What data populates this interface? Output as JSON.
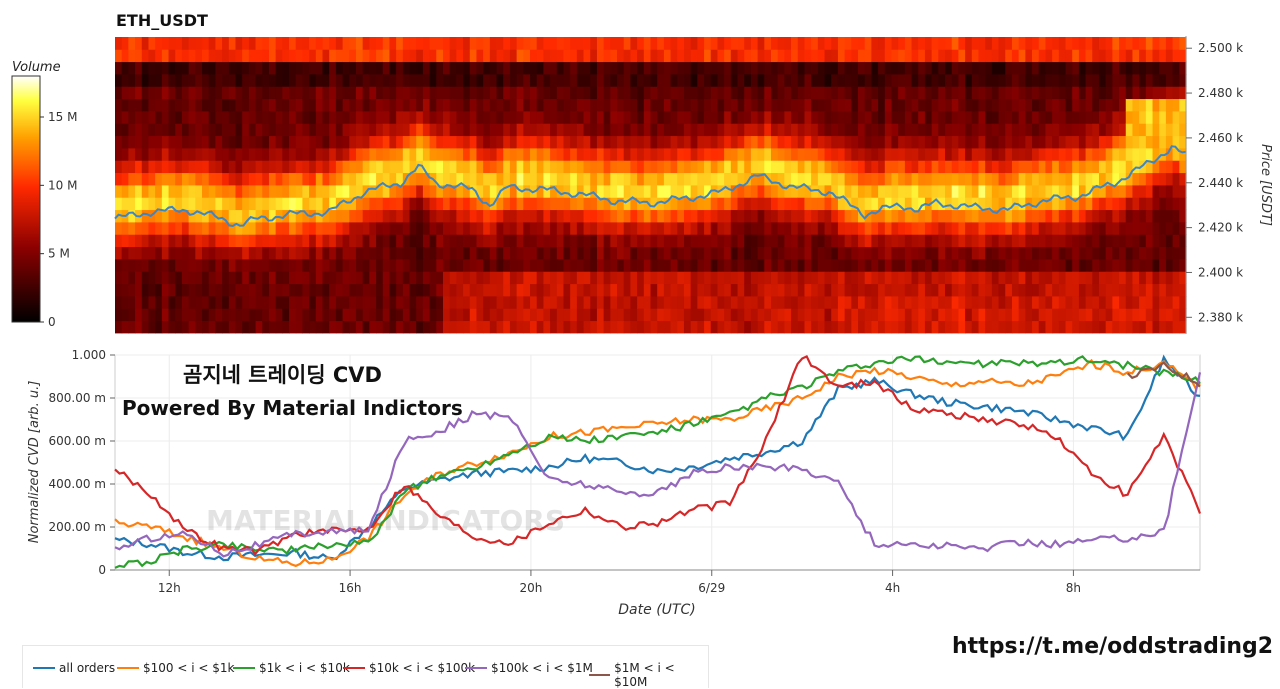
{
  "chart_data": [
    {
      "type": "heatmap",
      "title": "ETH_USDT",
      "ylabel": "Price [USDT]",
      "ylim": [
        2373,
        2505
      ],
      "y_ticks": [
        2380,
        2400,
        2420,
        2440,
        2460,
        2480,
        2500
      ],
      "y_tick_labels": [
        "2.380 k",
        "2.400 k",
        "2.420 k",
        "2.440 k",
        "2.460 k",
        "2.480 k",
        "2.500 k"
      ],
      "colorbar": {
        "title": "Volume",
        "range": [
          0,
          18
        ],
        "ticks": [
          0,
          5,
          10,
          15
        ],
        "tick_labels": [
          "0",
          "5 M",
          "10 M",
          "15 M"
        ]
      },
      "price_series": {
        "x_hours": [
          0,
          1,
          2,
          3,
          3.5,
          4,
          5,
          6,
          7,
          8,
          8.5,
          9,
          10,
          10.5,
          11,
          12,
          13,
          14,
          15,
          16,
          17,
          18,
          19,
          20,
          21,
          22,
          22.5,
          23,
          24,
          25,
          26,
          27,
          27.5,
          28,
          29,
          29.6,
          30
        ],
        "price": [
          2424,
          2427,
          2428,
          2424,
          2421,
          2424,
          2426,
          2427,
          2436,
          2440,
          2447,
          2440,
          2437,
          2430,
          2438,
          2437,
          2435,
          2432,
          2431,
          2433,
          2436,
          2443,
          2438,
          2436,
          2426,
          2430,
          2428,
          2431,
          2429,
          2428,
          2432,
          2434,
          2437,
          2440,
          2449,
          2456,
          2452
        ]
      }
    },
    {
      "type": "line",
      "xlabel": "Date (UTC)",
      "ylabel": "Normalized CVD [arb. u.]",
      "ylim": [
        0,
        1
      ],
      "x_tick_labels": [
        "12h",
        "16h",
        "20h",
        "6/29",
        "4h",
        "8h"
      ],
      "y_tick_labels": [
        "0",
        "200.00 m",
        "400.00 m",
        "600.00 m",
        "800.00 m",
        "1.000"
      ],
      "x_hours": [
        0,
        1,
        2,
        3,
        4,
        5,
        6,
        7,
        8,
        9,
        10,
        11,
        12,
        13,
        14,
        15,
        16,
        17,
        18,
        19,
        20,
        21,
        22,
        23,
        24,
        25,
        26,
        27,
        28,
        29,
        30
      ],
      "series": [
        {
          "name": "all orders",
          "color": "#1f77b4",
          "values": [
            0.14,
            0.12,
            0.08,
            0.06,
            0.07,
            0.08,
            0.05,
            0.2,
            0.38,
            0.42,
            0.45,
            0.46,
            0.48,
            0.52,
            0.5,
            0.46,
            0.48,
            0.52,
            0.55,
            0.6,
            0.84,
            0.88,
            0.82,
            0.78,
            0.76,
            0.74,
            0.7,
            0.66,
            0.62,
            0.98,
            0.8
          ]
        },
        {
          "name": "$100 < i < $1k",
          "color": "#ff7f0e",
          "values": [
            0.22,
            0.2,
            0.15,
            0.1,
            0.05,
            0.03,
            0.05,
            0.15,
            0.35,
            0.45,
            0.5,
            0.55,
            0.62,
            0.64,
            0.66,
            0.68,
            0.7,
            0.7,
            0.75,
            0.8,
            0.9,
            0.93,
            0.9,
            0.86,
            0.88,
            0.86,
            0.9,
            0.96,
            0.92,
            0.96,
            0.85
          ]
        },
        {
          "name": "$1k < i < $10k",
          "color": "#2ca02c",
          "values": [
            0.02,
            0.04,
            0.1,
            0.12,
            0.1,
            0.09,
            0.12,
            0.12,
            0.37,
            0.44,
            0.48,
            0.55,
            0.62,
            0.6,
            0.62,
            0.64,
            0.68,
            0.72,
            0.8,
            0.85,
            0.92,
            0.96,
            0.98,
            0.97,
            0.96,
            0.96,
            0.97,
            0.98,
            0.95,
            0.92,
            0.88
          ]
        },
        {
          "name": "$10k < i < $100k",
          "color": "#d62728",
          "values": [
            0.47,
            0.35,
            0.18,
            0.1,
            0.09,
            0.17,
            0.18,
            0.19,
            0.4,
            0.25,
            0.15,
            0.13,
            0.22,
            0.28,
            0.2,
            0.22,
            0.28,
            0.31,
            0.6,
            1.0,
            0.85,
            0.88,
            0.75,
            0.73,
            0.7,
            0.68,
            0.62,
            0.45,
            0.35,
            0.62,
            0.27
          ]
        },
        {
          "name": "$100k < i < $1M",
          "color": "#9467bd",
          "values": [
            0.1,
            0.15,
            0.17,
            0.08,
            0.12,
            0.17,
            0.18,
            0.18,
            0.6,
            0.65,
            0.73,
            0.7,
            0.42,
            0.4,
            0.36,
            0.36,
            0.45,
            0.48,
            0.48,
            0.47,
            0.41,
            0.12,
            0.12,
            0.11,
            0.1,
            0.13,
            0.12,
            0.14,
            0.15,
            0.18,
            0.92
          ]
        },
        {
          "name": "$1M < i < $10M",
          "color": "#8c564b",
          "values": [
            null,
            null,
            null,
            null,
            null,
            null,
            null,
            null,
            null,
            null,
            null,
            null,
            null,
            null,
            null,
            null,
            null,
            null,
            null,
            null,
            null,
            null,
            null,
            null,
            null,
            null,
            null,
            null,
            0.9,
            0.95,
            0.87
          ]
        }
      ],
      "annotations": [
        "곰지네 트레이딩 CVD",
        "Powered By Material Indictors"
      ],
      "watermark": "MATERIAL INDICATORS",
      "legend": "bottom"
    }
  ],
  "footer": {
    "url": "https://t.me/oddstrading2"
  }
}
